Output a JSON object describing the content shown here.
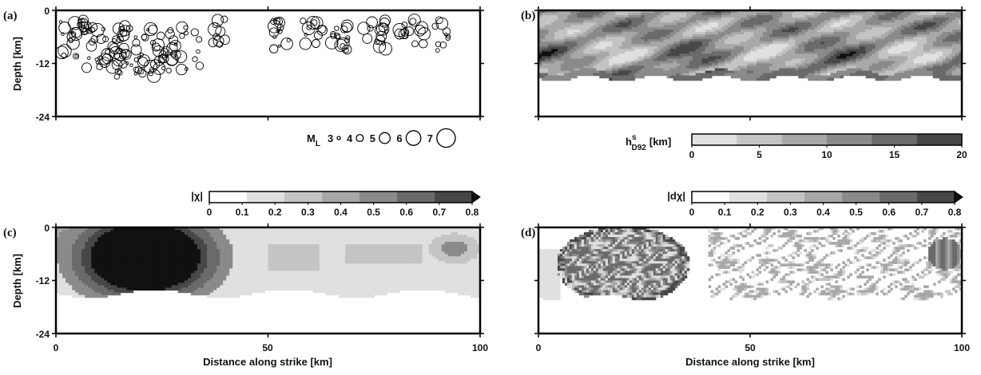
{
  "chart_data": [
    {
      "panel": "(a)",
      "type": "scatter",
      "ylabel": "Depth [km]",
      "xlim": [
        0,
        100
      ],
      "ylim": [
        -24,
        0
      ],
      "yticks": [
        "0",
        "-12",
        "-24"
      ],
      "legend": {
        "title": "M",
        "subscript": "L",
        "magnitudes": [
          "3",
          "4",
          "5",
          "6",
          "7"
        ],
        "values": [
          3,
          4,
          5,
          6,
          7
        ]
      }
    },
    {
      "panel": "(b)",
      "type": "heatmap",
      "colorbar": {
        "label": "h",
        "sup": "s",
        "sub": "D92",
        "unit": "[km]",
        "ticks": [
          "0",
          "5",
          "10",
          "15",
          "20"
        ],
        "range": [
          0,
          20
        ]
      }
    },
    {
      "panel": "(c)",
      "type": "heatmap",
      "ylabel": "Depth [km]",
      "xlabel": "Distance along strike [km]",
      "xticks": [
        "0",
        "50",
        "100"
      ],
      "yticks": [
        "0",
        "-12",
        "-24"
      ],
      "colorbar": {
        "label": "|χ|",
        "ticks": [
          "0",
          "0.1",
          "0.2",
          "0.3",
          "0.4",
          "0.5",
          "0.6",
          "0.7",
          "0.8"
        ],
        "range": [
          0,
          0.8
        ]
      }
    },
    {
      "panel": "(d)",
      "type": "heatmap",
      "xlabel": "Distance along strike [km]",
      "xticks": [
        "0",
        "50",
        "100"
      ],
      "colorbar": {
        "label": "|dχ|",
        "ticks": [
          "0",
          "0.1",
          "0.2",
          "0.3",
          "0.4",
          "0.5",
          "0.6",
          "0.7",
          "0.8"
        ],
        "range": [
          0,
          0.8
        ]
      }
    }
  ],
  "colors": {
    "ink": "#000000",
    "gray_levels": [
      "#ffffff",
      "#e0e0e0",
      "#c4c4c4",
      "#a8a8a8",
      "#8a8a8a",
      "#6a6a6a",
      "#474747",
      "#111111"
    ]
  }
}
